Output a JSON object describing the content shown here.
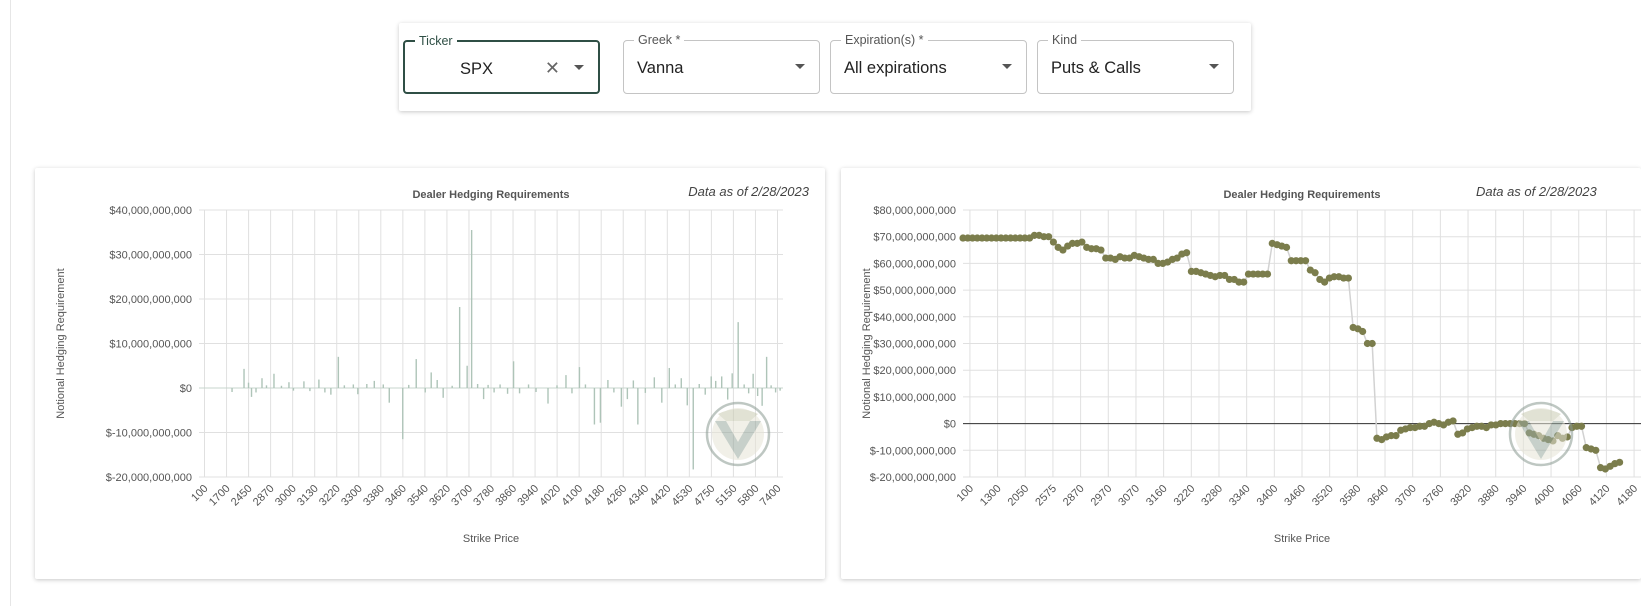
{
  "filters": {
    "ticker": {
      "label": "Ticker",
      "value": "SPX"
    },
    "greek": {
      "label": "Greek *",
      "value": "Vanna"
    },
    "expirations": {
      "label": "Expiration(s) *",
      "value": "All expirations"
    },
    "kind": {
      "label": "Kind",
      "value": "Puts & Calls"
    }
  },
  "icons": {
    "clear": "close-icon",
    "dropdown": "caret-down-icon",
    "watermark": "vv-logo-watermark"
  },
  "colors": {
    "bar": "#aec4b8",
    "dots": "#7b7d4c",
    "line": "#d2d2d2",
    "focus": "#2f4f45"
  },
  "chart_data": [
    {
      "type": "bar",
      "title": "Dealer Hedging Requirements",
      "as_of": "Data as of 2/28/2023",
      "xlabel": "Strike Price",
      "ylabel": "Notional Hedging Requirement",
      "ylim": [
        -20000000000,
        40000000000
      ],
      "yticks": [
        "$40,000,000,000",
        "$30,000,000,000",
        "$20,000,000,000",
        "$10,000,000,000",
        "$0",
        "$-10,000,000,000",
        "$-20,000,000,000"
      ],
      "xticks": [
        "100",
        "1700",
        "2450",
        "2870",
        "3000",
        "3130",
        "3220",
        "3300",
        "3380",
        "3460",
        "3540",
        "3620",
        "3700",
        "3780",
        "3860",
        "3940",
        "4020",
        "4100",
        "4180",
        "4260",
        "4340",
        "4420",
        "4530",
        "4750",
        "5150",
        "5800",
        "7400"
      ],
      "bars": [
        {
          "x": 2.2,
          "v": -0.9
        },
        {
          "x": 3.0,
          "v": 4.3
        },
        {
          "x": 3.3,
          "v": 1.2
        },
        {
          "x": 3.5,
          "v": -2.0
        },
        {
          "x": 3.8,
          "v": -1.0
        },
        {
          "x": 4.2,
          "v": 2.2
        },
        {
          "x": 4.5,
          "v": 0.6
        },
        {
          "x": 5.0,
          "v": 3.2
        },
        {
          "x": 5.5,
          "v": 0.5
        },
        {
          "x": 6.0,
          "v": 1.3
        },
        {
          "x": 6.3,
          "v": -0.6
        },
        {
          "x": 7.0,
          "v": 1.5
        },
        {
          "x": 7.4,
          "v": -0.7
        },
        {
          "x": 8.0,
          "v": 1.9
        },
        {
          "x": 8.4,
          "v": -1.0
        },
        {
          "x": 8.8,
          "v": -1.5
        },
        {
          "x": 9.3,
          "v": 7.0
        },
        {
          "x": 9.7,
          "v": 0.6
        },
        {
          "x": 10.3,
          "v": 0.8
        },
        {
          "x": 10.6,
          "v": -1.4
        },
        {
          "x": 11.2,
          "v": 0.9
        },
        {
          "x": 11.7,
          "v": 1.6
        },
        {
          "x": 12.3,
          "v": 0.8
        },
        {
          "x": 12.7,
          "v": -3.3
        },
        {
          "x": 13.6,
          "v": -11.5
        },
        {
          "x": 14.0,
          "v": 0.7
        },
        {
          "x": 14.5,
          "v": 6.5
        },
        {
          "x": 15.1,
          "v": -1.0
        },
        {
          "x": 15.5,
          "v": 3.5
        },
        {
          "x": 15.9,
          "v": 1.8
        },
        {
          "x": 16.3,
          "v": -2.2
        },
        {
          "x": 16.9,
          "v": 0.5
        },
        {
          "x": 17.4,
          "v": 18.2
        },
        {
          "x": 17.9,
          "v": 5.0
        },
        {
          "x": 18.2,
          "v": 35.5
        },
        {
          "x": 18.6,
          "v": 0.9
        },
        {
          "x": 19.0,
          "v": -2.5
        },
        {
          "x": 19.3,
          "v": 0.7
        },
        {
          "x": 19.7,
          "v": -1.0
        },
        {
          "x": 20.1,
          "v": 0.8
        },
        {
          "x": 20.6,
          "v": -1.3
        },
        {
          "x": 21.0,
          "v": 6.0
        },
        {
          "x": 21.4,
          "v": -1.2
        },
        {
          "x": 22.0,
          "v": 0.8
        },
        {
          "x": 22.5,
          "v": -0.9
        },
        {
          "x": 23.3,
          "v": -3.5
        },
        {
          "x": 23.9,
          "v": 0.6
        },
        {
          "x": 24.5,
          "v": 2.9
        },
        {
          "x": 24.9,
          "v": -1.2
        },
        {
          "x": 25.4,
          "v": 4.7
        },
        {
          "x": 25.8,
          "v": 0.8
        },
        {
          "x": 26.4,
          "v": -8.2
        },
        {
          "x": 26.8,
          "v": -7.8
        },
        {
          "x": 27.3,
          "v": 1.8
        },
        {
          "x": 27.7,
          "v": -1.0
        },
        {
          "x": 28.2,
          "v": -4.2
        },
        {
          "x": 28.6,
          "v": -2.5
        },
        {
          "x": 29.0,
          "v": 1.7
        },
        {
          "x": 29.3,
          "v": -8.2
        },
        {
          "x": 29.8,
          "v": -1.1
        },
        {
          "x": 30.4,
          "v": 2.4
        },
        {
          "x": 30.9,
          "v": -3.3
        },
        {
          "x": 31.4,
          "v": 4.5
        },
        {
          "x": 31.8,
          "v": 0.8
        },
        {
          "x": 32.2,
          "v": 2.2
        },
        {
          "x": 32.6,
          "v": -3.9
        },
        {
          "x": 33.0,
          "v": -18.3
        },
        {
          "x": 33.4,
          "v": 0.9
        },
        {
          "x": 33.8,
          "v": -1.5
        },
        {
          "x": 34.2,
          "v": 2.6
        },
        {
          "x": 34.5,
          "v": 1.6
        },
        {
          "x": 34.9,
          "v": 2.6
        },
        {
          "x": 35.3,
          "v": -2.6
        },
        {
          "x": 35.6,
          "v": 3.3
        },
        {
          "x": 36.0,
          "v": 14.8
        },
        {
          "x": 36.4,
          "v": 0.8
        },
        {
          "x": 36.7,
          "v": -1.2
        },
        {
          "x": 37.0,
          "v": 3.2
        },
        {
          "x": 37.3,
          "v": -1.8
        },
        {
          "x": 37.6,
          "v": -4.0
        },
        {
          "x": 37.9,
          "v": 7.0
        },
        {
          "x": 38.2,
          "v": 0.6
        },
        {
          "x": 38.5,
          "v": -1.0
        },
        {
          "x": 38.8,
          "v": -0.6
        }
      ]
    },
    {
      "type": "line",
      "title": "Dealer Hedging Requirements",
      "as_of": "Data as of 2/28/2023",
      "xlabel": "Strike Price",
      "ylabel": "Notional Hedging Requirement",
      "ylim": [
        -20000000000,
        80000000000
      ],
      "yticks": [
        "$80,000,000,000",
        "$70,000,000,000",
        "$60,000,000,000",
        "$50,000,000,000",
        "$40,000,000,000",
        "$30,000,000,000",
        "$20,000,000,000",
        "$10,000,000,000",
        "$0",
        "$-10,000,000,000",
        "$-20,000,000,000"
      ],
      "xticks": [
        "100",
        "1300",
        "2050",
        "2575",
        "2870",
        "2970",
        "3070",
        "3160",
        "3220",
        "3280",
        "3340",
        "3400",
        "3460",
        "3520",
        "3580",
        "3640",
        "3700",
        "3760",
        "3820",
        "3880",
        "3940",
        "4000",
        "4060",
        "4120",
        "4180"
      ],
      "points": [
        [
          0,
          69.5
        ],
        [
          4,
          69.5
        ],
        [
          8,
          69.5
        ],
        [
          12,
          69.5
        ],
        [
          16,
          69.5
        ],
        [
          20,
          69.5
        ],
        [
          24,
          69.5
        ],
        [
          28,
          69.5
        ],
        [
          32,
          69.5
        ],
        [
          36,
          69.5
        ],
        [
          40,
          69.5
        ],
        [
          44,
          69.5
        ],
        [
          48,
          69.5
        ],
        [
          52,
          69.5
        ],
        [
          56,
          69.5
        ],
        [
          60,
          70.5
        ],
        [
          64,
          70.5
        ],
        [
          68,
          70
        ],
        [
          72,
          70
        ],
        [
          76,
          68
        ],
        [
          80,
          66
        ],
        [
          84,
          65
        ],
        [
          88,
          66.5
        ],
        [
          92,
          67.5
        ],
        [
          96,
          67.5
        ],
        [
          100,
          68
        ],
        [
          104,
          66
        ],
        [
          108,
          65.5
        ],
        [
          112,
          65.5
        ],
        [
          116,
          65
        ],
        [
          120,
          62
        ],
        [
          124,
          62
        ],
        [
          128,
          61.5
        ],
        [
          132,
          62.5
        ],
        [
          136,
          62
        ],
        [
          140,
          62
        ],
        [
          144,
          63
        ],
        [
          148,
          62.5
        ],
        [
          152,
          62
        ],
        [
          156,
          61.5
        ],
        [
          160,
          61.5
        ],
        [
          164,
          60
        ],
        [
          168,
          60
        ],
        [
          172,
          60.5
        ],
        [
          176,
          61.5
        ],
        [
          180,
          62
        ],
        [
          184,
          63.5
        ],
        [
          188,
          64
        ],
        [
          192,
          57
        ],
        [
          196,
          57
        ],
        [
          200,
          56.5
        ],
        [
          204,
          56
        ],
        [
          208,
          55.5
        ],
        [
          212,
          55
        ],
        [
          216,
          55.5
        ],
        [
          220,
          55.5
        ],
        [
          224,
          54
        ],
        [
          228,
          54
        ],
        [
          232,
          53
        ],
        [
          236,
          53
        ],
        [
          240,
          56
        ],
        [
          244,
          56
        ],
        [
          248,
          56
        ],
        [
          252,
          56
        ],
        [
          256,
          56
        ],
        [
          260,
          67.5
        ],
        [
          264,
          67
        ],
        [
          268,
          66.5
        ],
        [
          272,
          66
        ],
        [
          276,
          61
        ],
        [
          280,
          61
        ],
        [
          284,
          61
        ],
        [
          288,
          61
        ],
        [
          292,
          57.5
        ],
        [
          296,
          56.5
        ],
        [
          300,
          54
        ],
        [
          304,
          53
        ],
        [
          308,
          54.5
        ],
        [
          312,
          55
        ],
        [
          316,
          55
        ],
        [
          320,
          54.5
        ],
        [
          324,
          54.5
        ],
        [
          328,
          36
        ],
        [
          332,
          35.5
        ],
        [
          336,
          34.5
        ],
        [
          340,
          30
        ],
        [
          344,
          30
        ],
        [
          348,
          -5.5
        ],
        [
          352,
          -6
        ],
        [
          356,
          -5
        ],
        [
          360,
          -4.5
        ],
        [
          364,
          -4.5
        ],
        [
          368,
          -2.5
        ],
        [
          372,
          -2
        ],
        [
          376,
          -1.5
        ],
        [
          380,
          -1.5
        ],
        [
          384,
          -1
        ],
        [
          388,
          -1
        ],
        [
          392,
          0
        ],
        [
          396,
          0.5
        ],
        [
          400,
          0
        ],
        [
          404,
          -0.5
        ],
        [
          408,
          0.5
        ],
        [
          412,
          1
        ],
        [
          416,
          -4
        ],
        [
          420,
          -3.5
        ],
        [
          424,
          -2
        ],
        [
          428,
          -1.5
        ],
        [
          432,
          -1
        ],
        [
          436,
          -1
        ],
        [
          440,
          -1.5
        ],
        [
          444,
          -0.5
        ],
        [
          448,
          -0.5
        ],
        [
          452,
          0
        ],
        [
          456,
          0
        ],
        [
          460,
          0
        ],
        [
          464,
          0
        ],
        [
          468,
          0
        ],
        [
          472,
          0
        ],
        [
          476,
          -3.5
        ],
        [
          480,
          -4
        ],
        [
          484,
          -4.5
        ],
        [
          488,
          -5.5
        ],
        [
          492,
          -6
        ],
        [
          496,
          -6.5
        ],
        [
          500,
          -4.5
        ],
        [
          504,
          -5.5
        ],
        [
          508,
          -5
        ],
        [
          512,
          -1.5
        ],
        [
          516,
          -1
        ],
        [
          520,
          -1
        ],
        [
          524,
          -9
        ],
        [
          528,
          -9.5
        ],
        [
          532,
          -10
        ],
        [
          536,
          -16.5
        ],
        [
          540,
          -17
        ],
        [
          544,
          -16
        ],
        [
          548,
          -15
        ],
        [
          552,
          -14.5
        ]
      ]
    }
  ]
}
